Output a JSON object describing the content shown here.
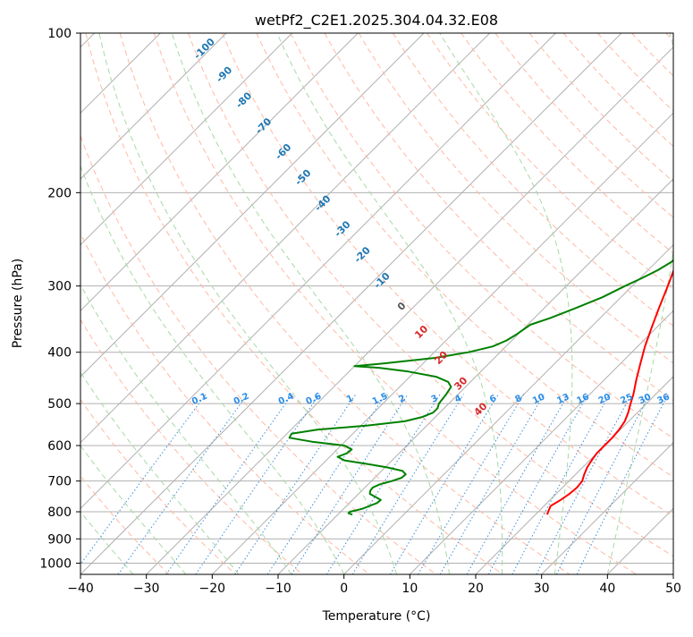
{
  "chart_data": {
    "type": "line",
    "title": "wetPf2_C2E1.2025.304.04.32.E08",
    "xlabel": "Temperature (°C)",
    "ylabel": "Pressure (hPa)",
    "xlim": [
      -40,
      50
    ],
    "ylim": [
      1050,
      100
    ],
    "y_scale": "log",
    "grid": true,
    "xticks": [
      -40,
      -30,
      -20,
      -10,
      0,
      10,
      20,
      30,
      40,
      50
    ],
    "yticks": [
      100,
      200,
      300,
      400,
      500,
      600,
      700,
      800,
      900,
      1000
    ],
    "xtick_labels": [
      "−40",
      "−30",
      "−20",
      "−10",
      "0",
      "10",
      "20",
      "30",
      "40",
      "50"
    ],
    "ytick_labels": [
      "100",
      "200",
      "300",
      "400",
      "500",
      "600",
      "700",
      "800",
      "900",
      "1000"
    ],
    "series": [
      {
        "name": "Temperature",
        "color": "#ff0000",
        "points": [
          [
            810,
            21.8
          ],
          [
            800,
            21.5
          ],
          [
            780,
            21.0
          ],
          [
            760,
            21.6
          ],
          [
            740,
            22.0
          ],
          [
            720,
            22.2
          ],
          [
            700,
            22.0
          ],
          [
            680,
            21.3
          ],
          [
            660,
            20.7
          ],
          [
            640,
            20.3
          ],
          [
            620,
            20.0
          ],
          [
            600,
            20.0
          ],
          [
            580,
            20.0
          ],
          [
            560,
            19.8
          ],
          [
            540,
            19.4
          ],
          [
            520,
            18.6
          ],
          [
            500,
            17.6
          ],
          [
            480,
            16.6
          ],
          [
            450,
            14.8
          ],
          [
            420,
            13.0
          ],
          [
            390,
            11.1
          ],
          [
            360,
            9.3
          ],
          [
            330,
            7.4
          ],
          [
            300,
            5.4
          ],
          [
            280,
            3.9
          ],
          [
            260,
            2.3
          ],
          [
            240,
            1.1
          ],
          [
            220,
            -0.1
          ],
          [
            205,
            -0.7
          ],
          [
            200,
            -0.8
          ],
          [
            190,
            0.7
          ],
          [
            180,
            2.2
          ],
          [
            170,
            3.0
          ],
          [
            160,
            4.3
          ],
          [
            150,
            5.3
          ],
          [
            140,
            5.6
          ],
          [
            130,
            5.6
          ],
          [
            125,
            6.0
          ],
          [
            120,
            6.4
          ],
          [
            115,
            7.8
          ],
          [
            110,
            8.8
          ],
          [
            105,
            9.3
          ],
          [
            100,
            9.6
          ]
        ]
      },
      {
        "name": "Dewpoint",
        "color": "#008000",
        "points": [
          [
            810,
            -7.8
          ],
          [
            805,
            -8.6
          ],
          [
            800,
            -8.6
          ],
          [
            790,
            -7.2
          ],
          [
            780,
            -6.5
          ],
          [
            770,
            -5.8
          ],
          [
            760,
            -5.7
          ],
          [
            750,
            -7.0
          ],
          [
            740,
            -8.3
          ],
          [
            730,
            -8.7
          ],
          [
            720,
            -8.8
          ],
          [
            710,
            -8.2
          ],
          [
            700,
            -6.9
          ],
          [
            690,
            -5.9
          ],
          [
            680,
            -5.8
          ],
          [
            670,
            -6.8
          ],
          [
            660,
            -9.6
          ],
          [
            650,
            -13.2
          ],
          [
            640,
            -17.2
          ],
          [
            630,
            -18.8
          ],
          [
            620,
            -17.9
          ],
          [
            610,
            -17.8
          ],
          [
            600,
            -19.5
          ],
          [
            590,
            -25.0
          ],
          [
            580,
            -29.0
          ],
          [
            570,
            -29.3
          ],
          [
            560,
            -26.0
          ],
          [
            550,
            -19.0
          ],
          [
            540,
            -14.0
          ],
          [
            530,
            -12.0
          ],
          [
            520,
            -11.0
          ],
          [
            510,
            -11.0
          ],
          [
            500,
            -11.5
          ],
          [
            480,
            -11.8
          ],
          [
            465,
            -12.2
          ],
          [
            455,
            -13.4
          ],
          [
            445,
            -16.0
          ],
          [
            435,
            -21.0
          ],
          [
            428,
            -26.0
          ],
          [
            425,
            -30.0
          ],
          [
            420,
            -26.0
          ],
          [
            410,
            -19.0
          ],
          [
            400,
            -14.8
          ],
          [
            390,
            -12.0
          ],
          [
            380,
            -10.8
          ],
          [
            370,
            -10.2
          ],
          [
            355,
            -9.6
          ],
          [
            345,
            -7.6
          ],
          [
            330,
            -5.2
          ],
          [
            315,
            -2.8
          ],
          [
            300,
            -1.1
          ],
          [
            290,
            0.3
          ],
          [
            280,
            1.5
          ],
          [
            270,
            2.3
          ],
          [
            260,
            2.2
          ],
          [
            250,
            1.5
          ],
          [
            240,
            0.7
          ],
          [
            230,
            0.0
          ],
          [
            220,
            -0.5
          ],
          [
            205,
            -0.9
          ],
          [
            200,
            -1.5
          ],
          [
            195,
            -4.0
          ],
          [
            190,
            -6.0
          ],
          [
            185,
            -7.5
          ],
          [
            175,
            -8.0
          ],
          [
            168,
            -9.0
          ],
          [
            162,
            -9.6
          ],
          [
            158,
            -8.7
          ],
          [
            150,
            -7.5
          ],
          [
            140,
            -6.0
          ],
          [
            132,
            -5.0
          ],
          [
            125,
            -3.5
          ],
          [
            118,
            -1.9
          ],
          [
            110,
            -0.3
          ],
          [
            104,
            1.0
          ],
          [
            100,
            2.2
          ]
        ]
      }
    ],
    "dry_adiabat_labels": [
      "-100",
      "-90",
      "-80",
      "-70",
      "-60",
      "-50",
      "-40",
      "-30",
      "-20",
      "-10",
      "0",
      "10",
      "20",
      "30",
      "40"
    ],
    "mixing_ratio_labels": [
      "0.1",
      "0.2",
      "0.4",
      "0.6",
      "1",
      "1.5",
      "2",
      "3",
      "4",
      "6",
      "8",
      "10",
      "13",
      "16",
      "20",
      "25",
      "30",
      "36"
    ]
  }
}
